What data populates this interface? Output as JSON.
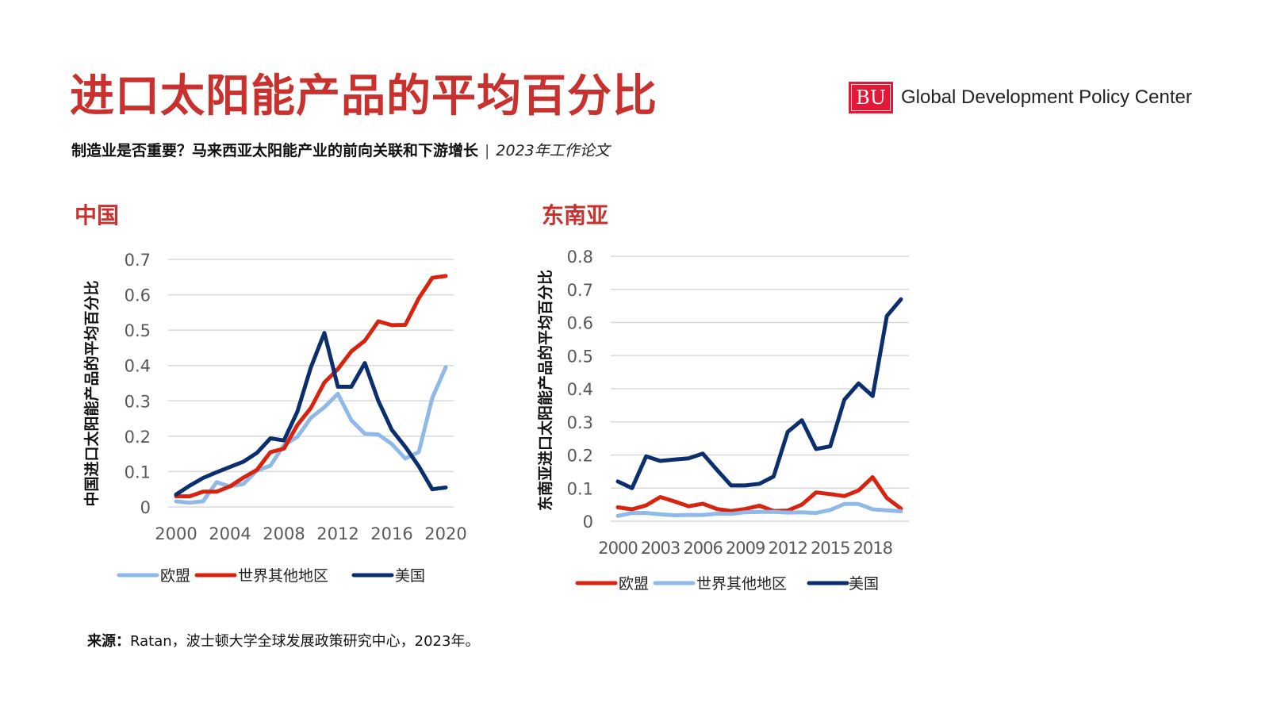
{
  "header": {
    "title": "进口太阳能产品的平均百分比",
    "subtitle_main": "制造业是否重要？马来西亚太阳能产业的前向关联和下游增长",
    "subtitle_sep": "|",
    "subtitle_paper": "2023年工作论文",
    "logo_mark": "BU",
    "logo_text": "Global Development Policy Center"
  },
  "sections": {
    "left_title": "中国",
    "right_title": "东南亚"
  },
  "footer": {
    "source_label": "来源：",
    "source_text": "Ratan，波士顿大学全球发展政策研究中心，2023年。"
  },
  "colors": {
    "title_red": "#c8312d",
    "eu_light_blue": "#8fb9e9",
    "row_red": "#d8230f",
    "us_navy": "#0b2f6e",
    "grid": "#d9d9d9",
    "tick": "#595959"
  },
  "chart_data": [
    {
      "type": "line",
      "title": "中国",
      "xlabel": "",
      "ylabel": "中国进口太阳能产品的平均百分比",
      "x": [
        2000,
        2001,
        2002,
        2003,
        2004,
        2005,
        2006,
        2007,
        2008,
        2009,
        2010,
        2011,
        2012,
        2013,
        2014,
        2015,
        2016,
        2017,
        2018,
        2019,
        2020
      ],
      "x_ticks": [
        "2000",
        "2004",
        "2008",
        "2012",
        "2016",
        "2020"
      ],
      "y_ticks": [
        "0",
        "0.1",
        "0.2",
        "0.3",
        "0.4",
        "0.5",
        "0.6",
        "0.7"
      ],
      "ylim": [
        0,
        0.7
      ],
      "grid": true,
      "legend_position": "bottom",
      "series": [
        {
          "name": "欧盟",
          "color": "#8fb9e9",
          "values": [
            0.016,
            0.012,
            0.016,
            0.07,
            0.058,
            0.065,
            0.103,
            0.117,
            0.175,
            0.198,
            0.252,
            0.282,
            0.32,
            0.245,
            0.207,
            0.205,
            0.178,
            0.137,
            0.155,
            0.308,
            0.395
          ]
        },
        {
          "name": "世界其他地区",
          "color": "#d8230f",
          "values": [
            0.03,
            0.03,
            0.043,
            0.043,
            0.058,
            0.083,
            0.105,
            0.155,
            0.165,
            0.232,
            0.28,
            0.352,
            0.39,
            0.44,
            0.47,
            0.525,
            0.514,
            0.515,
            0.59,
            0.648,
            0.653
          ]
        },
        {
          "name": "美国",
          "color": "#0b2f6e",
          "values": [
            0.035,
            0.06,
            0.082,
            0.098,
            0.113,
            0.128,
            0.153,
            0.194,
            0.188,
            0.27,
            0.395,
            0.492,
            0.34,
            0.34,
            0.407,
            0.3,
            0.218,
            0.17,
            0.115,
            0.05,
            0.055
          ]
        }
      ]
    },
    {
      "type": "line",
      "title": "东南亚",
      "xlabel": "",
      "ylabel": "东南亚进口太阳能产品的平均百分比",
      "x": [
        2000,
        2001,
        2002,
        2003,
        2004,
        2005,
        2006,
        2007,
        2008,
        2009,
        2010,
        2011,
        2012,
        2013,
        2014,
        2015,
        2016,
        2017,
        2018,
        2019,
        2020
      ],
      "x_ticks": [
        "2000",
        "2003",
        "2006",
        "2009",
        "2012",
        "2015",
        "2018"
      ],
      "y_ticks": [
        "0",
        "0.1",
        "0.2",
        "0.3",
        "0.4",
        "0.5",
        "0.6",
        "0.7",
        "0.8"
      ],
      "ylim": [
        0,
        0.8
      ],
      "grid": true,
      "legend_position": "bottom",
      "series": [
        {
          "name": "欧盟",
          "color": "#d8230f",
          "values": [
            0.042,
            0.036,
            0.048,
            0.073,
            0.06,
            0.045,
            0.053,
            0.037,
            0.031,
            0.037,
            0.047,
            0.031,
            0.032,
            0.05,
            0.087,
            0.082,
            0.076,
            0.093,
            0.133,
            0.07,
            0.038
          ]
        },
        {
          "name": "世界其他地区",
          "color": "#8fb9e9",
          "values": [
            0.016,
            0.025,
            0.025,
            0.021,
            0.018,
            0.019,
            0.019,
            0.023,
            0.022,
            0.027,
            0.028,
            0.028,
            0.026,
            0.027,
            0.025,
            0.034,
            0.052,
            0.052,
            0.036,
            0.033,
            0.03
          ]
        },
        {
          "name": "美国",
          "color": "#0b2f6e",
          "values": [
            0.12,
            0.1,
            0.196,
            0.182,
            0.186,
            0.19,
            0.204,
            0.155,
            0.108,
            0.108,
            0.113,
            0.135,
            0.27,
            0.305,
            0.218,
            0.226,
            0.367,
            0.416,
            0.378,
            0.62,
            0.67
          ]
        }
      ]
    }
  ]
}
